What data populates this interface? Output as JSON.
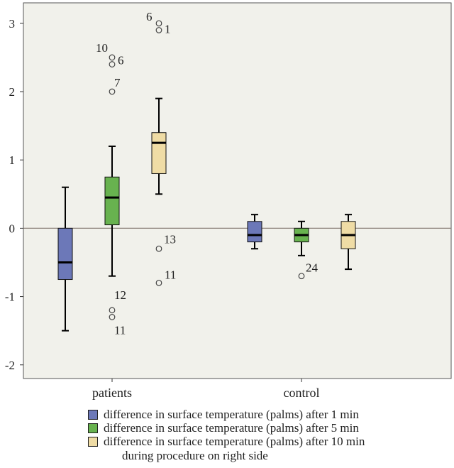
{
  "chart_data": {
    "type": "box",
    "categories": [
      "patients",
      "control"
    ],
    "ylim": [
      -2.2,
      3.3
    ],
    "yticks": [
      -2,
      -1,
      0,
      1,
      2,
      3
    ],
    "ytick_labels": [
      "-2",
      "-1",
      "0",
      "1",
      "2",
      "3"
    ],
    "zero_reference_line": 0,
    "plot_background": "#f1f1eb",
    "series": [
      {
        "name": "difference in surface temperature (palms) after 1 min",
        "color": "#6c78b8",
        "boxes": [
          {
            "category": "patients",
            "whisker_low": -1.5,
            "q1": -0.75,
            "median": -0.5,
            "q3": 0.0,
            "whisker_high": 0.6,
            "outliers": []
          },
          {
            "category": "control",
            "whisker_low": -0.3,
            "q1": -0.2,
            "median": -0.1,
            "q3": 0.1,
            "whisker_high": 0.2,
            "outliers": []
          }
        ]
      },
      {
        "name": "difference in surface temperature (palms) after 5 min",
        "color": "#68b24f",
        "boxes": [
          {
            "category": "patients",
            "whisker_low": -0.7,
            "q1": 0.05,
            "median": 0.45,
            "q3": 0.75,
            "whisker_high": 1.2,
            "outliers": [
              {
                "value": 2.5,
                "label": "10"
              },
              {
                "value": 2.4,
                "label": "6"
              },
              {
                "value": 2.0,
                "label": "7"
              },
              {
                "value": -1.2,
                "label": "12"
              },
              {
                "value": -1.3,
                "label": "11"
              }
            ]
          },
          {
            "category": "control",
            "whisker_low": -0.4,
            "q1": -0.2,
            "median": -0.1,
            "q3": 0.0,
            "whisker_high": 0.1,
            "outliers": [
              {
                "value": -0.7,
                "label": "24"
              }
            ]
          }
        ]
      },
      {
        "name": "difference in surface temperature (palms) after 10 min",
        "color": "#efdca5",
        "boxes": [
          {
            "category": "patients",
            "whisker_low": 0.5,
            "q1": 0.8,
            "median": 1.25,
            "q3": 1.4,
            "whisker_high": 1.9,
            "outliers": [
              {
                "value": 3.0,
                "label": "6"
              },
              {
                "value": 2.9,
                "label": "1"
              },
              {
                "value": -0.3,
                "label": "13"
              },
              {
                "value": -0.8,
                "label": "11"
              }
            ]
          },
          {
            "category": "control",
            "whisker_low": -0.6,
            "q1": -0.3,
            "median": -0.1,
            "q3": 0.1,
            "whisker_high": 0.2,
            "outliers": []
          }
        ]
      }
    ],
    "legend": {
      "placement": "bottom",
      "items": [
        "difference in surface temperature (palms) after 1 min",
        "difference in surface temperature (palms) after 5 min",
        "difference in surface temperature (palms) after 10 min"
      ],
      "footer": "during procedure on right side"
    }
  }
}
